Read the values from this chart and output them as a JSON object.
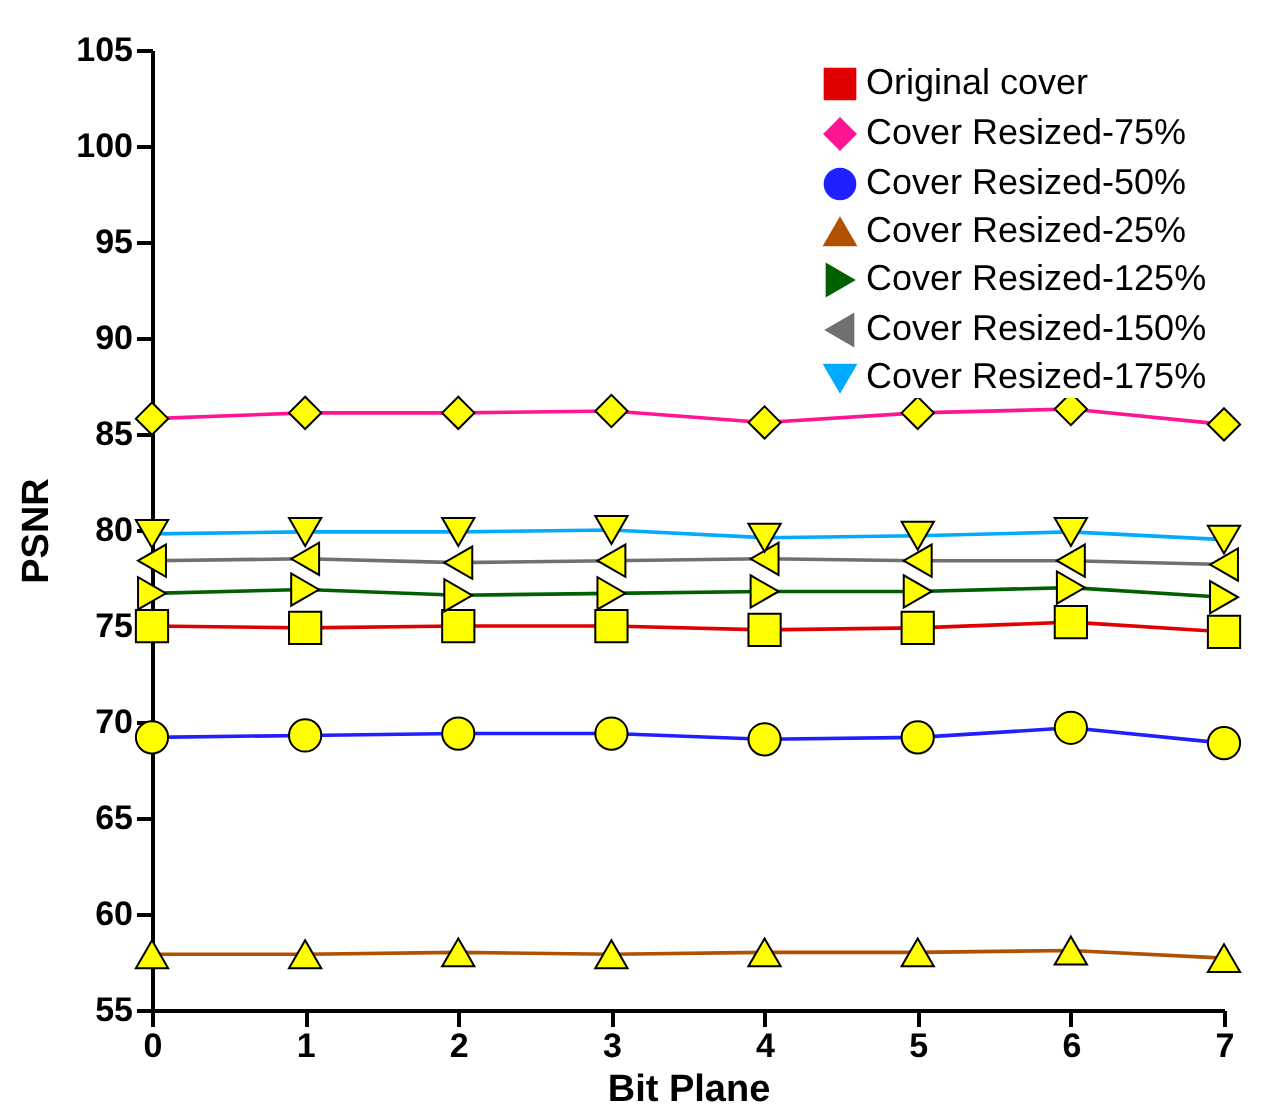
{
  "chart_data": {
    "type": "line",
    "xlabel": "Bit Plane",
    "ylabel": "PSNR",
    "x": [
      0,
      1,
      2,
      3,
      4,
      5,
      6,
      7
    ],
    "xlim": [
      0,
      7
    ],
    "xticks": [
      0,
      1,
      2,
      3,
      4,
      5,
      6,
      7
    ],
    "ylim": [
      55,
      105
    ],
    "yticks": [
      55,
      60,
      65,
      70,
      75,
      80,
      85,
      90,
      95,
      100,
      105
    ],
    "grid": false,
    "legend": "top right",
    "series": [
      {
        "name": "Original cover",
        "color": "#e00000",
        "marker": "square",
        "values": [
          75.0,
          74.9,
          75.0,
          75.0,
          74.8,
          74.9,
          75.2,
          74.7
        ]
      },
      {
        "name": "Cover Resized-75%",
        "color": "#ff1493",
        "marker": "diamond",
        "values": [
          85.8,
          86.1,
          86.1,
          86.2,
          85.6,
          86.1,
          86.3,
          85.5
        ]
      },
      {
        "name": "Cover Resized-50%",
        "color": "#2020ff",
        "marker": "circle",
        "values": [
          69.2,
          69.3,
          69.4,
          69.4,
          69.1,
          69.2,
          69.7,
          68.9
        ]
      },
      {
        "name": "Cover Resized-25%",
        "color": "#b05000",
        "marker": "triangle",
        "values": [
          57.9,
          57.9,
          58.0,
          57.9,
          58.0,
          58.0,
          58.1,
          57.7
        ]
      },
      {
        "name": "Cover Resized-125%",
        "color": "#006000",
        "marker": "triangle-right",
        "values": [
          76.7,
          76.9,
          76.6,
          76.7,
          76.8,
          76.8,
          77.0,
          76.5
        ]
      },
      {
        "name": "Cover Resized-150%",
        "color": "#707070",
        "marker": "triangle-left",
        "values": [
          78.4,
          78.5,
          78.3,
          78.4,
          78.5,
          78.4,
          78.4,
          78.2
        ]
      },
      {
        "name": "Cover Resized-175%",
        "color": "#00aaff",
        "marker": "triangle-down",
        "values": [
          79.8,
          79.9,
          79.9,
          80.0,
          79.6,
          79.7,
          79.9,
          79.5
        ]
      }
    ]
  }
}
